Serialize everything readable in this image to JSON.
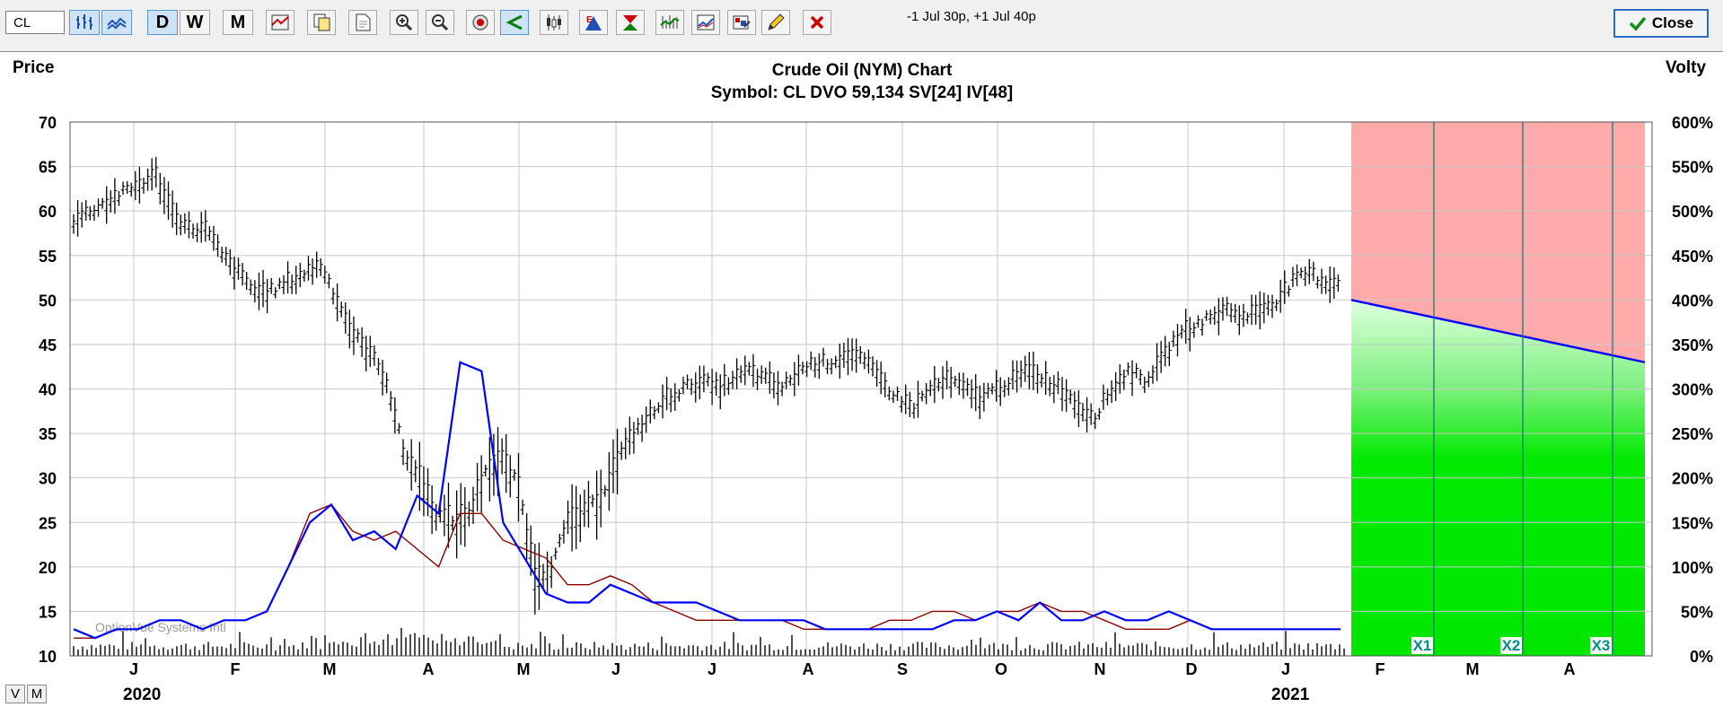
{
  "toolbar": {
    "symbol_value": "CL",
    "period_buttons": [
      "D",
      "W",
      "M"
    ],
    "status_text": "-1 Jul 30p, +1 Jul 40p",
    "close_label": "Close"
  },
  "chart": {
    "title": "Crude Oil (NYM) Chart",
    "subtitle": "Symbol: CL  DVO 59,134  SV[24]  IV[48]",
    "left_axis_title": "Price",
    "right_axis_title": "Volty",
    "watermark": "OptionVue Systems Intl",
    "expiry_markers": [
      "X1",
      "X2",
      "X3"
    ],
    "year_labels": [
      "2020",
      "2021"
    ]
  },
  "view_buttons": [
    "V",
    "M"
  ],
  "colors": {
    "price_bars": "#000000",
    "implied_volatility": "#0000ff",
    "statistical_volatility": "#8b0000",
    "projection_upper": "#ffaaaa",
    "projection_lower": "#00ee00"
  },
  "chart_data": {
    "type": "line",
    "y_left_ticks": [
      "70",
      "65",
      "60",
      "55",
      "50",
      "45",
      "40",
      "35",
      "30",
      "25",
      "20",
      "15",
      "10"
    ],
    "y_right_ticks": [
      "600%",
      "550%",
      "500%",
      "450%",
      "400%",
      "350%",
      "300%",
      "250%",
      "200%",
      "150%",
      "100%",
      "50%",
      "0%"
    ],
    "ylim_price": [
      10,
      70
    ],
    "ylim_volatility_pct": [
      0,
      600
    ],
    "x_month_labels": [
      "J",
      "F",
      "M",
      "A",
      "M",
      "J",
      "J",
      "A",
      "S",
      "O",
      "N",
      "D",
      "J",
      "F",
      "M",
      "A"
    ],
    "series": [
      {
        "name": "Price",
        "values": [
          59,
          60,
          61,
          62,
          63,
          64,
          60,
          58,
          58,
          55,
          53,
          51,
          51,
          52,
          53,
          54,
          50,
          46,
          44,
          41,
          33,
          30,
          26,
          25,
          26,
          31,
          32,
          29,
          19,
          20,
          25,
          26,
          28,
          32,
          35,
          37,
          39,
          40,
          41,
          40,
          41,
          42,
          41,
          40,
          42,
          43,
          43,
          44,
          43,
          41,
          39,
          38,
          40,
          41,
          40,
          39,
          40,
          41,
          42,
          41,
          40,
          38,
          37,
          40,
          42,
          41,
          43,
          46,
          47,
          48,
          49,
          48,
          49,
          50,
          52,
          53,
          52,
          52
        ]
      },
      {
        "name": "IV",
        "values": [
          13,
          12,
          13,
          13,
          14,
          14,
          13,
          14,
          14,
          15,
          20,
          25,
          27,
          23,
          24,
          22,
          28,
          26,
          43,
          42,
          25,
          21,
          17,
          16,
          16,
          18,
          17,
          16,
          16,
          16,
          15,
          14,
          14,
          14,
          14,
          13,
          13,
          13,
          13,
          13,
          13,
          14,
          14,
          15,
          14,
          16,
          14,
          14,
          15,
          14,
          14,
          15,
          14,
          13,
          13,
          13,
          13,
          13,
          13,
          13
        ]
      },
      {
        "name": "SV",
        "values": [
          12,
          12,
          13,
          13,
          14,
          14,
          13,
          14,
          14,
          15,
          20,
          26,
          27,
          24,
          23,
          24,
          22,
          20,
          26,
          26,
          23,
          22,
          21,
          18,
          18,
          19,
          18,
          16,
          15,
          14,
          14,
          14,
          14,
          14,
          13,
          13,
          13,
          13,
          14,
          14,
          15,
          15,
          14,
          15,
          15,
          16,
          15,
          15,
          14,
          13,
          13,
          13,
          14,
          13,
          13,
          13,
          13,
          13,
          13,
          13
        ]
      }
    ],
    "projection_volatility_pct": [
      400,
      330
    ]
  }
}
